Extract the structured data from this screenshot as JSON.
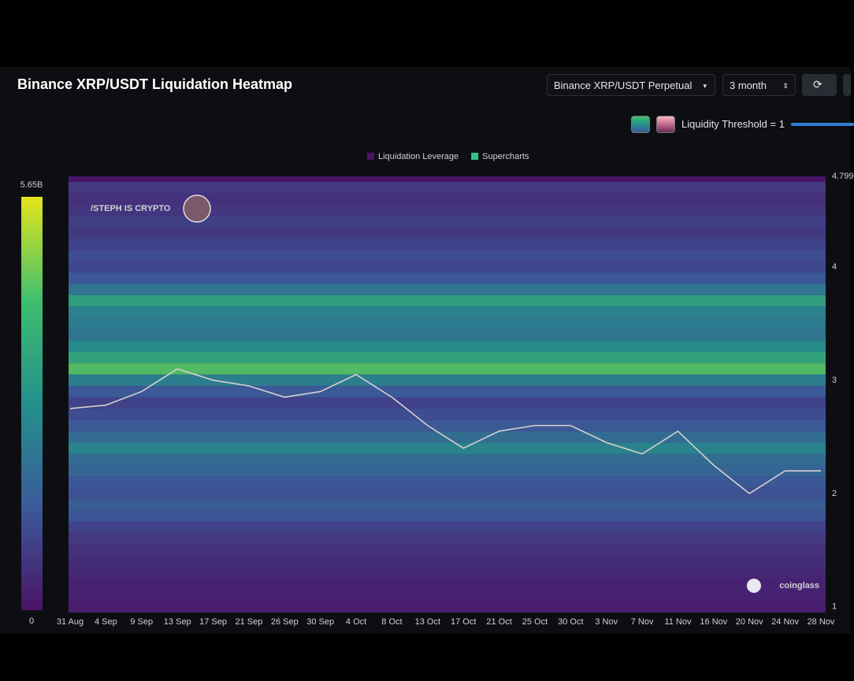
{
  "header": {
    "title": "Binance XRP/USDT Liquidation Heatmap",
    "pair_select": "Binance XRP/USDT Perpetual",
    "range_select": "3 month",
    "threshold": "Liquidity Threshold = 1"
  },
  "chart_data": {
    "type": "heatmap",
    "legend": [
      {
        "name": "Liquidation Leverage",
        "color": "#4a1468"
      },
      {
        "name": "Supercharts",
        "color": "#2fc28a"
      }
    ],
    "watermarks": [
      "/STEPH IS CRYPTO",
      "coinglass"
    ],
    "categories": [
      "31 Aug",
      "4 Sep",
      "9 Sep",
      "13 Sep",
      "17 Sep",
      "21 Sep",
      "26 Sep",
      "30 Sep",
      "4 Oct",
      "8 Oct",
      "13 Oct",
      "17 Oct",
      "21 Oct",
      "25 Oct",
      "30 Oct",
      "3 Nov",
      "7 Nov",
      "11 Nov",
      "16 Nov",
      "20 Nov",
      "24 Nov",
      "28 Nov"
    ],
    "price": [
      2.75,
      2.78,
      2.9,
      3.1,
      3.0,
      2.95,
      2.85,
      2.9,
      3.05,
      2.85,
      2.6,
      2.4,
      2.55,
      2.6,
      2.6,
      2.45,
      2.35,
      2.55,
      2.25,
      2.0,
      2.2,
      2.2
    ],
    "price_color": "#d8d0d0",
    "levels": {
      "prices": [
        4.7,
        4.6,
        4.5,
        4.4,
        4.3,
        4.2,
        4.1,
        4.0,
        3.9,
        3.8,
        3.7,
        3.6,
        3.5,
        3.4,
        3.3,
        3.2,
        3.1,
        3.0,
        2.9,
        2.8,
        2.7,
        2.6,
        2.5,
        2.4,
        2.3,
        2.2,
        2.1,
        2.0,
        1.9,
        1.8,
        1.7,
        1.6,
        1.5,
        1.4,
        1.3,
        1.2,
        1.1,
        1.0
      ],
      "values": [
        0.8,
        0.6,
        0.7,
        0.9,
        0.8,
        1.0,
        1.2,
        1.1,
        1.5,
        2.2,
        3.4,
        2.6,
        2.4,
        2.2,
        2.8,
        3.6,
        4.4,
        2.5,
        1.5,
        1.0,
        1.2,
        1.5,
        2.0,
        2.6,
        2.0,
        1.8,
        1.5,
        1.3,
        1.6,
        1.4,
        1.0,
        0.8,
        0.6,
        0.5,
        0.4,
        0.3,
        0.3,
        0.2
      ]
    },
    "colorbar": {
      "min": 0,
      "max": {
        "value": 5.65,
        "label": "5.65B"
      }
    },
    "colorscale": [
      "#4a1468",
      "#3b5a9a",
      "#23918c",
      "#3fbf6e",
      "#e4e419"
    ],
    "ylim": [
      0.95,
      4.799
    ],
    "yticks": [
      1,
      2,
      3,
      4,
      {
        "value": 4.799,
        "label": "4.799"
      }
    ]
  }
}
